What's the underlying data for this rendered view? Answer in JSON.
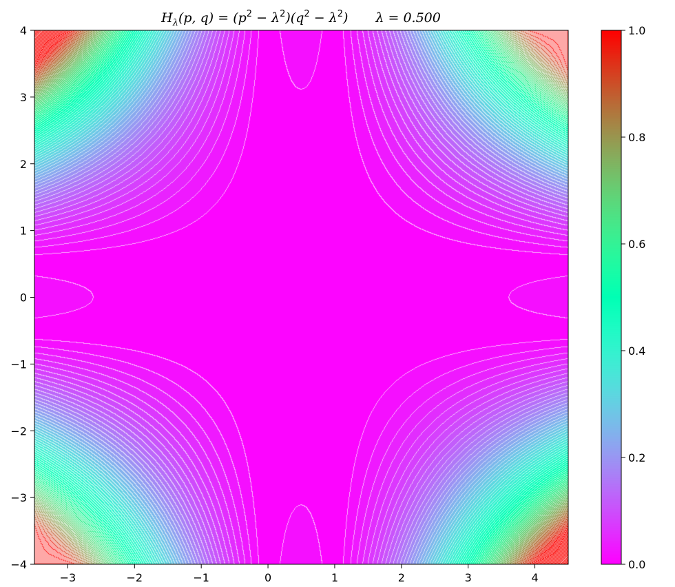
{
  "chart_data": {
    "type": "heatmap",
    "title": {
      "H": "H",
      "sub": "λ",
      "args": "(p, q)",
      "eq": " = (p",
      "sq1": "2",
      "m1": " − λ",
      "sq2": "2",
      "mid": ")(q",
      "sq3": "2",
      "m2": " − λ",
      "sq4": "2",
      "end": ")",
      "lambda_text": "λ = 0.500"
    },
    "lambda": 0.5,
    "x_center": 0.5,
    "xlim": [
      -3.5,
      4.5
    ],
    "ylim": [
      -4,
      4
    ],
    "normalization_max": 189.0625,
    "contour_levels": 80,
    "contour_line_color": "#ffffff",
    "colormap": "rainbow",
    "colorbar_range": [
      0.0,
      1.0
    ],
    "x_ticks": [
      "−3",
      "−2",
      "−1",
      "0",
      "1",
      "2",
      "3",
      "4"
    ],
    "y_ticks": [
      "4",
      "3",
      "2",
      "1",
      "0",
      "−1",
      "−2",
      "−3",
      "−4"
    ],
    "colorbar_ticks": [
      "1.0",
      "0.8",
      "0.6",
      "0.4",
      "0.2",
      "0.0"
    ]
  }
}
